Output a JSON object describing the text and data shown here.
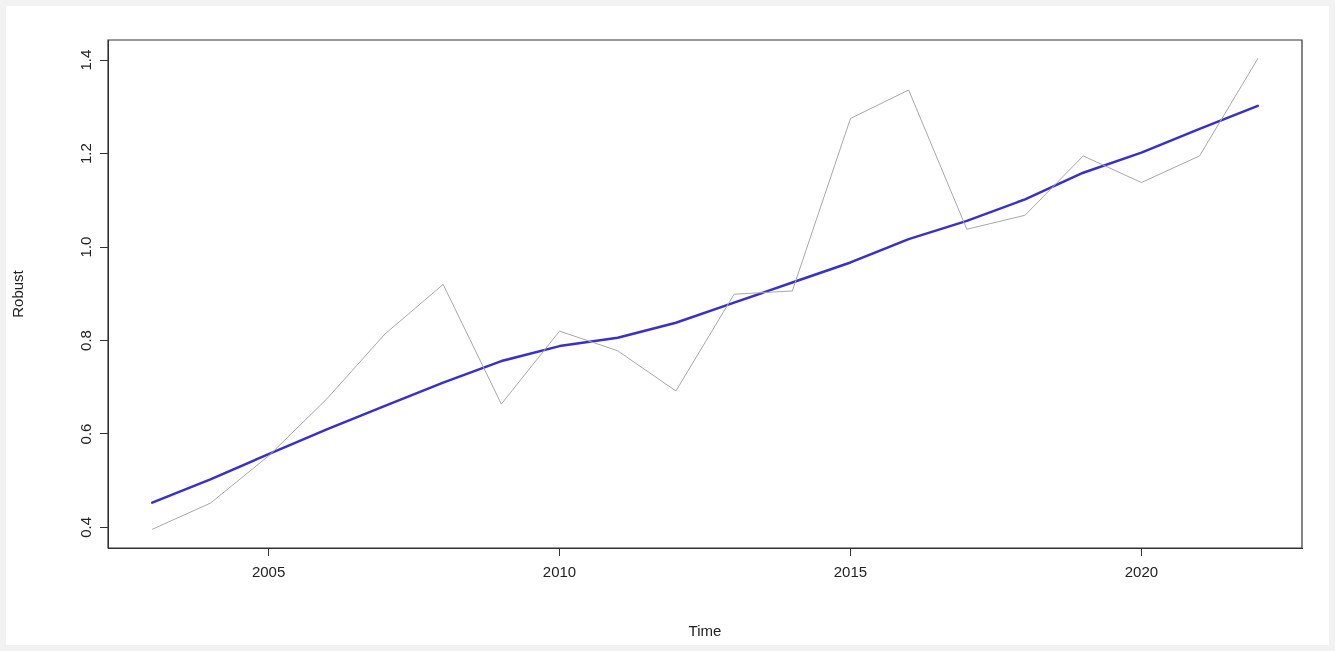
{
  "chart_data": {
    "type": "line",
    "xlabel": "Time",
    "ylabel": "Robust",
    "x": [
      2003,
      2004,
      2005,
      2006,
      2007,
      2008,
      2009,
      2010,
      2011,
      2012,
      2013,
      2014,
      2015,
      2016,
      2017,
      2018,
      2019,
      2020,
      2021,
      2022
    ],
    "series": [
      {
        "color": "#a8a8a8",
        "values": [
          0.396,
          0.452,
          0.553,
          0.675,
          0.814,
          0.92,
          0.664,
          0.82,
          0.778,
          0.692,
          0.899,
          0.906,
          1.275,
          1.336,
          1.038,
          1.068,
          1.195,
          1.138,
          1.195,
          1.403
        ]
      },
      {
        "color": "#3a2fc8",
        "values": [
          0.453,
          0.503,
          0.557,
          0.61,
          0.66,
          0.71,
          0.756,
          0.788,
          0.806,
          0.838,
          0.881,
          0.924,
          0.967,
          1.017,
          1.056,
          1.102,
          1.159,
          1.202,
          1.253,
          1.302
        ]
      }
    ],
    "xlim": [
      2002.24,
      2022.76
    ],
    "xticks": [
      2005,
      2010,
      2015,
      2020
    ],
    "ylim": [
      0.356,
      1.443
    ],
    "yticks": [
      {
        "value": 0.4,
        "label": "0.4"
      },
      {
        "value": 0.6,
        "label": "0.6"
      },
      {
        "value": 0.8,
        "label": "0.8"
      },
      {
        "value": 1.0,
        "label": "1.0"
      },
      {
        "value": 1.2,
        "label": "1.2"
      },
      {
        "value": 1.4,
        "label": "1.4"
      }
    ],
    "grid": false,
    "legend": false,
    "marker": "none",
    "line_style": "solid"
  }
}
